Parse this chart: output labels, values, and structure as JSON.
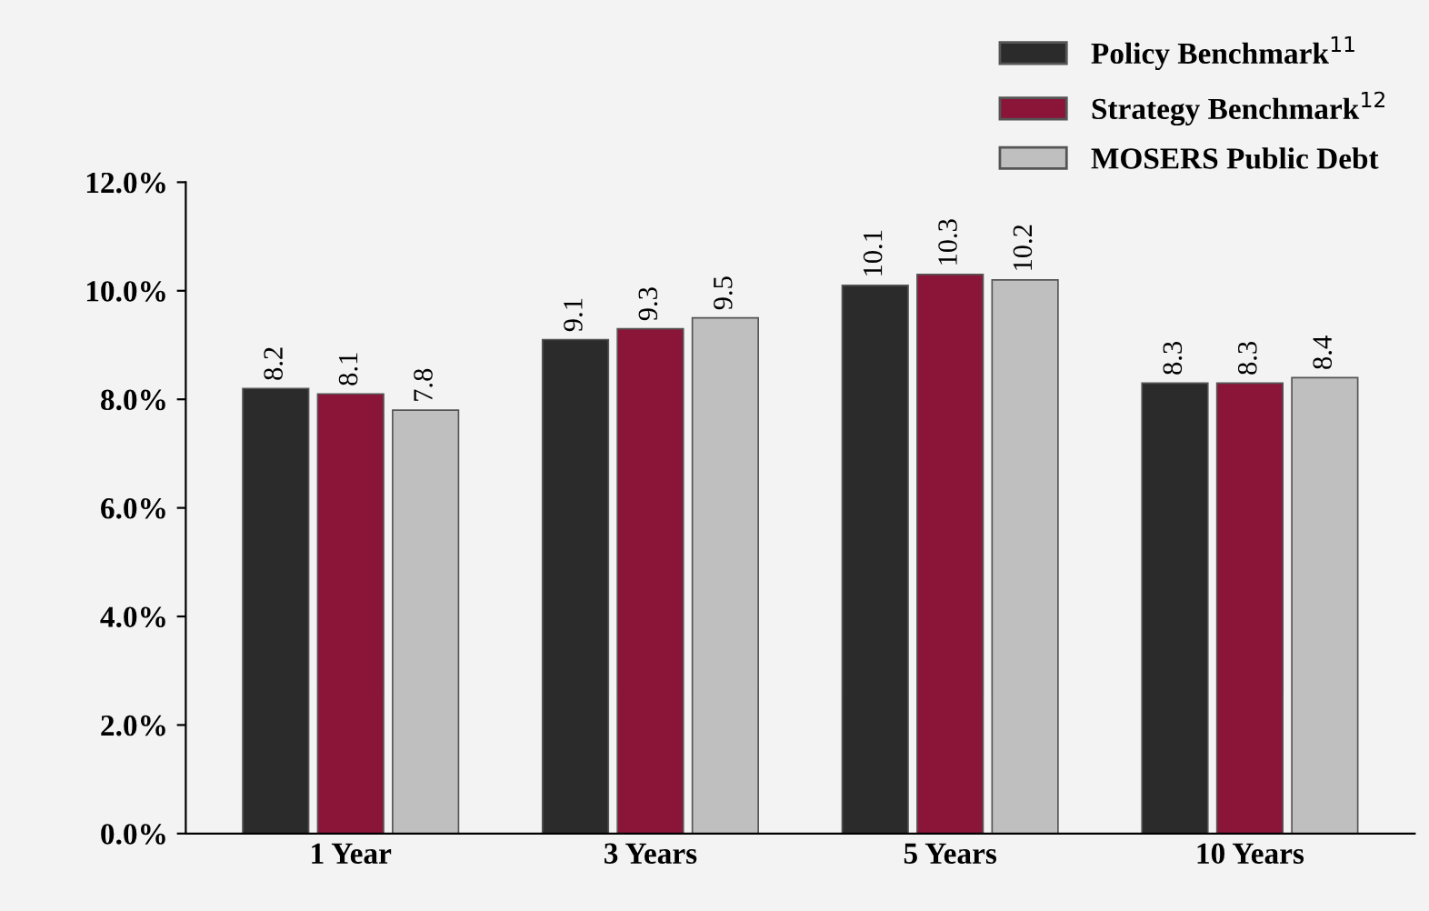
{
  "chart_data": {
    "type": "bar",
    "categories": [
      "1 Year",
      "3 Years",
      "5 Years",
      "10 Years"
    ],
    "series": [
      {
        "name": "Policy Benchmark$^{11}$",
        "color": "#2b2b2b",
        "values": [
          8.2,
          9.1,
          10.1,
          8.3
        ]
      },
      {
        "name": "Strategy Benchmark$^{12}$",
        "color": "#8a1538",
        "values": [
          8.1,
          9.3,
          10.3,
          8.3
        ]
      },
      {
        "name": "MOSERS Public Debt",
        "color": "#bfbfbf",
        "values": [
          7.8,
          9.5,
          10.2,
          8.4
        ]
      }
    ],
    "ylim": [
      0,
      12
    ],
    "yticks": [
      {
        "value": 0,
        "label": "0.0%"
      },
      {
        "value": 2,
        "label": "2.0%"
      },
      {
        "value": 4,
        "label": "4.0%"
      },
      {
        "value": 6,
        "label": "6.0%"
      },
      {
        "value": 8,
        "label": "8.0%"
      },
      {
        "value": 10,
        "label": "10.0%"
      },
      {
        "value": 12,
        "label": "12.0%"
      }
    ],
    "data_labels": true,
    "grid": false,
    "legend": "top right"
  }
}
